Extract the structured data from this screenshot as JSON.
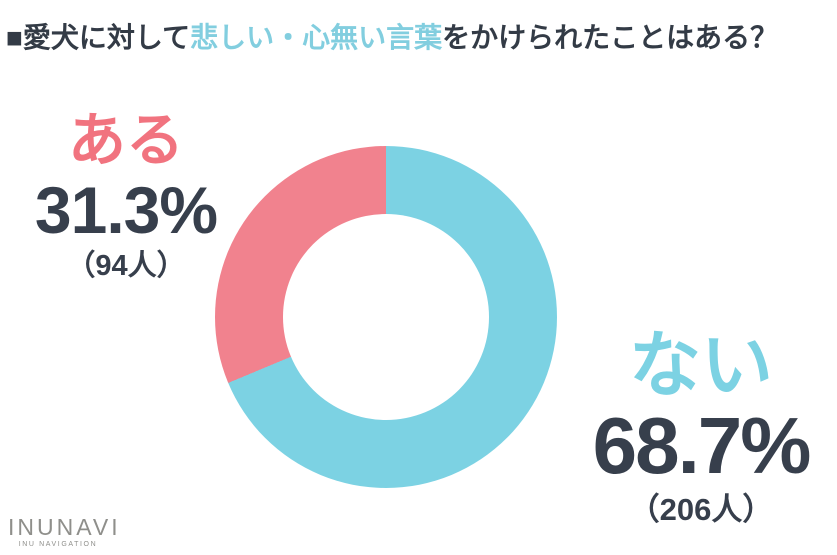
{
  "page": {
    "background": "#ffffff",
    "text_dark_color": "#373F4C"
  },
  "title": {
    "prefix": "■愛犬に対して",
    "highlight": "悲しい・心無い言葉",
    "suffix": "をかけられたことはある？",
    "dark_color": "#333B46",
    "highlight_color": "#82CEDF"
  },
  "chart_data": {
    "type": "pie",
    "donut": true,
    "start_angle_deg": 0,
    "direction": "clockwise",
    "title": "愛犬に対して悲しい・心無い言葉をかけられたことはある？",
    "legend_position": "labels-beside-slices",
    "slices": [
      {
        "label": "ない",
        "percent": 68.7,
        "percent_label": "68.7%",
        "count": 206,
        "count_label": "（206人）",
        "color": "#7CD2E3"
      },
      {
        "label": "ある",
        "percent": 31.3,
        "percent_label": "31.3%",
        "count": 94,
        "count_label": "（94人）",
        "color": "#F1828E"
      }
    ]
  },
  "labels": {
    "aru_text_color": "#F1737F",
    "nai_text_color": "#7CD2E3",
    "number_color": "#373F4C"
  },
  "logo": {
    "main": "INUNAVI",
    "sub": "INU NAVIGATION",
    "color": "#8F8F8B"
  }
}
